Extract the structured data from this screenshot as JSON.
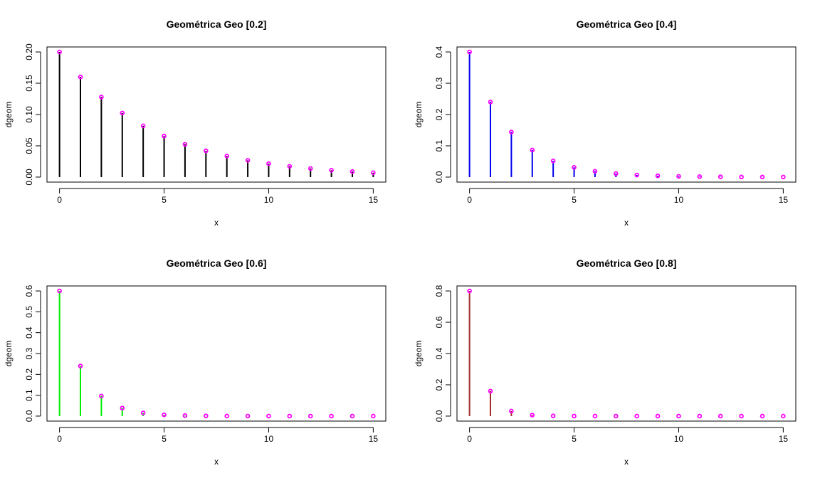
{
  "chart_data": [
    {
      "type": "bar",
      "title": "Geométrica Geo [0.2]",
      "xlabel": "x",
      "ylabel": "dgeom",
      "xlim": [
        0,
        15
      ],
      "ylim": [
        0,
        0.2
      ],
      "x_ticks": [
        "0",
        "5",
        "10",
        "15"
      ],
      "y_ticks": [
        "0.00",
        "0.05",
        "0.10",
        "0.15",
        "0.20"
      ],
      "line_color": "#000000",
      "point_color": "#ff00ff",
      "x": [
        0,
        1,
        2,
        3,
        4,
        5,
        6,
        7,
        8,
        9,
        10,
        11,
        12,
        13,
        14,
        15
      ],
      "values": [
        0.2,
        0.16,
        0.128,
        0.1024,
        0.0819,
        0.0655,
        0.0524,
        0.0419,
        0.0336,
        0.0268,
        0.0215,
        0.0172,
        0.0137,
        0.011,
        0.0088,
        0.007
      ]
    },
    {
      "type": "bar",
      "title": "Geométrica Geo [0.4]",
      "xlabel": "x",
      "ylabel": "dgeom",
      "xlim": [
        0,
        15
      ],
      "ylim": [
        0,
        0.4
      ],
      "x_ticks": [
        "0",
        "5",
        "10",
        "15"
      ],
      "y_ticks": [
        "0.0",
        "0.1",
        "0.2",
        "0.3",
        "0.4"
      ],
      "line_color": "#0000ee",
      "point_color": "#ff00ff",
      "x": [
        0,
        1,
        2,
        3,
        4,
        5,
        6,
        7,
        8,
        9,
        10,
        11,
        12,
        13,
        14,
        15
      ],
      "values": [
        0.4,
        0.24,
        0.144,
        0.0864,
        0.0518,
        0.0311,
        0.0187,
        0.0112,
        0.0067,
        0.004,
        0.0024,
        0.0015,
        0.0009,
        0.0005,
        0.0003,
        0.0002
      ]
    },
    {
      "type": "bar",
      "title": "Geométrica Geo [0.6]",
      "xlabel": "x",
      "ylabel": "dgeom",
      "xlim": [
        0,
        15
      ],
      "ylim": [
        0,
        0.6
      ],
      "x_ticks": [
        "0",
        "5",
        "10",
        "15"
      ],
      "y_ticks": [
        "0.0",
        "0.1",
        "0.2",
        "0.3",
        "0.4",
        "0.5",
        "0.6"
      ],
      "line_color": "#00ee00",
      "point_color": "#ff00ff",
      "x": [
        0,
        1,
        2,
        3,
        4,
        5,
        6,
        7,
        8,
        9,
        10,
        11,
        12,
        13,
        14,
        15
      ],
      "values": [
        0.6,
        0.24,
        0.096,
        0.0384,
        0.0154,
        0.0061,
        0.0025,
        0.001,
        0.0004,
        0.0002,
        0.0001,
        0,
        0,
        0,
        0,
        0
      ]
    },
    {
      "type": "bar",
      "title": "Geométrica Geo [0.8]",
      "xlabel": "x",
      "ylabel": "dgeom",
      "xlim": [
        0,
        15
      ],
      "ylim": [
        0,
        0.8
      ],
      "x_ticks": [
        "0",
        "5",
        "10",
        "15"
      ],
      "y_ticks": [
        "0.0",
        "0.2",
        "0.4",
        "0.6",
        "0.8"
      ],
      "line_color": "#a52a2a",
      "point_color": "#ff00ff",
      "x": [
        0,
        1,
        2,
        3,
        4,
        5,
        6,
        7,
        8,
        9,
        10,
        11,
        12,
        13,
        14,
        15
      ],
      "values": [
        0.8,
        0.16,
        0.032,
        0.0064,
        0.0013,
        0.0003,
        0.0001,
        0,
        0,
        0,
        0,
        0,
        0,
        0,
        0,
        0
      ]
    }
  ]
}
